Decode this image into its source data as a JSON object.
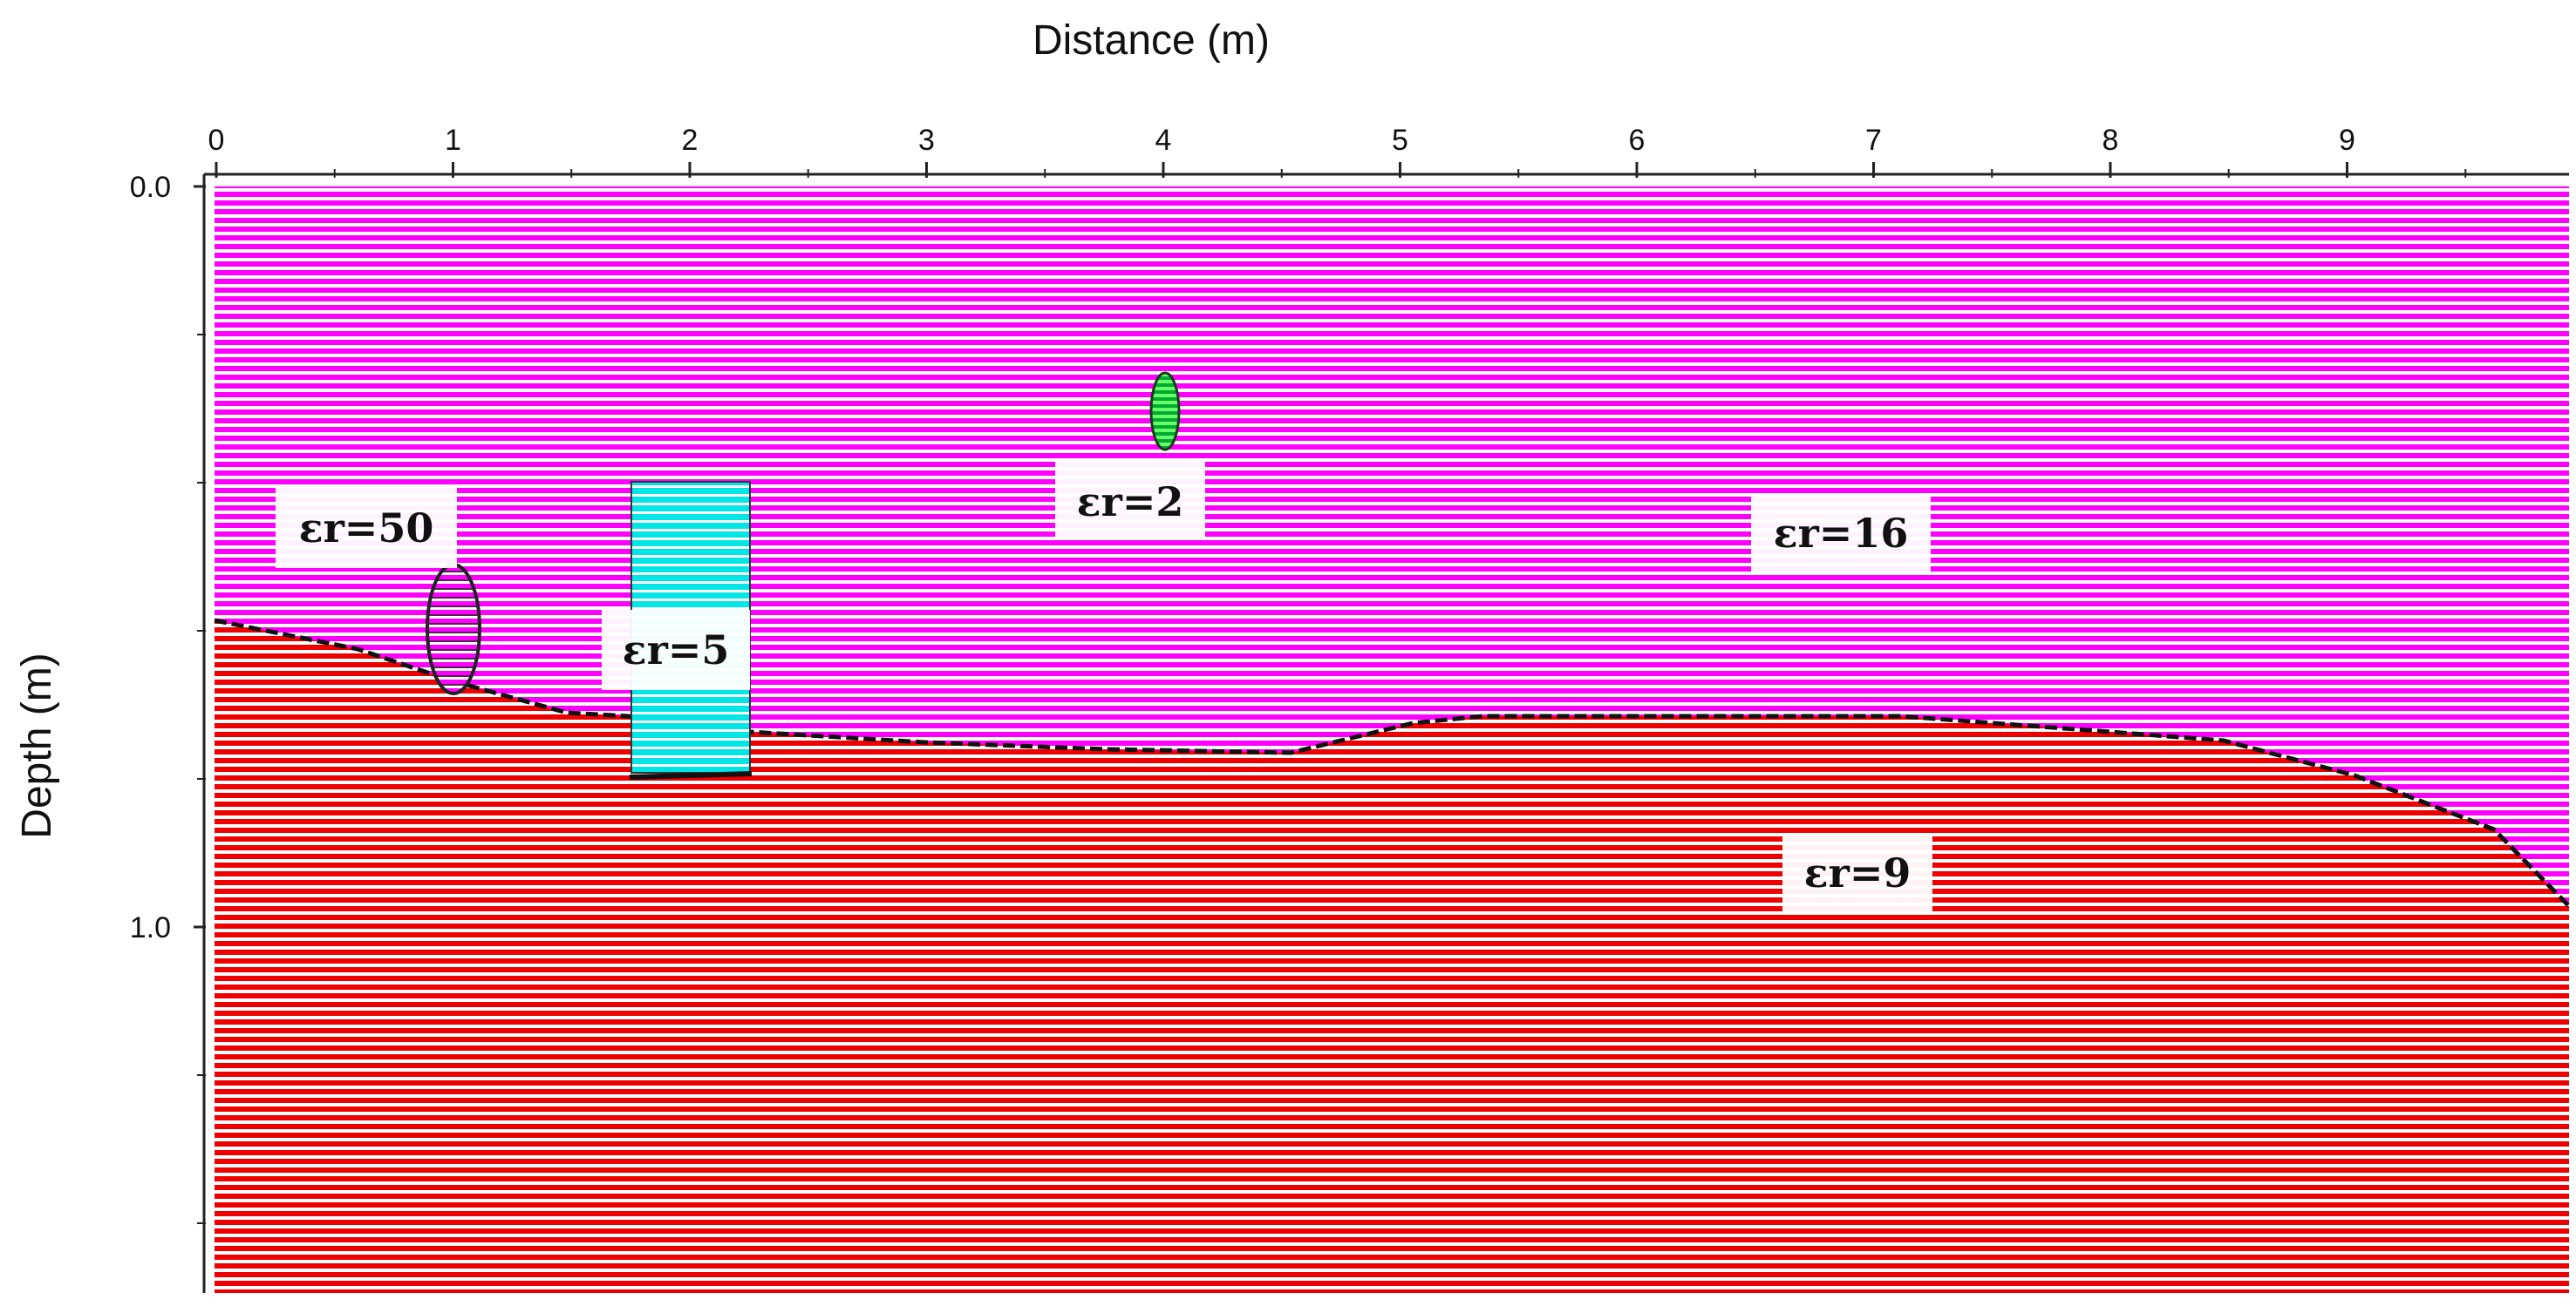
{
  "axes": {
    "x_title": "Distance (m)",
    "y_title": "Depth (m)",
    "x_ticks": [
      "0",
      "1",
      "2",
      "3",
      "4",
      "5",
      "6",
      "7",
      "8",
      "9"
    ],
    "y_ticks": [
      "0.0",
      "1.0"
    ],
    "x_range": [
      0,
      9.9
    ],
    "y_range": [
      0,
      1.49
    ]
  },
  "regions": [
    {
      "name": "upper-layer",
      "label": "εr=16",
      "color": "#ff00ff"
    },
    {
      "name": "lower-layer",
      "label": "εr=9",
      "color": "#ff0000"
    },
    {
      "name": "void-ellipse",
      "label": "εr=50"
    },
    {
      "name": "rect-anomaly",
      "label": "εr=5",
      "color": "#00e5e5"
    },
    {
      "name": "small-pipe",
      "label": "εr=2",
      "color": "#00cc33"
    }
  ],
  "colors": {
    "upper_layer": "#ff00ff",
    "lower_layer": "#ff0000",
    "rect_anomaly": "#00e5e5",
    "pipe": "#00cc33"
  }
}
